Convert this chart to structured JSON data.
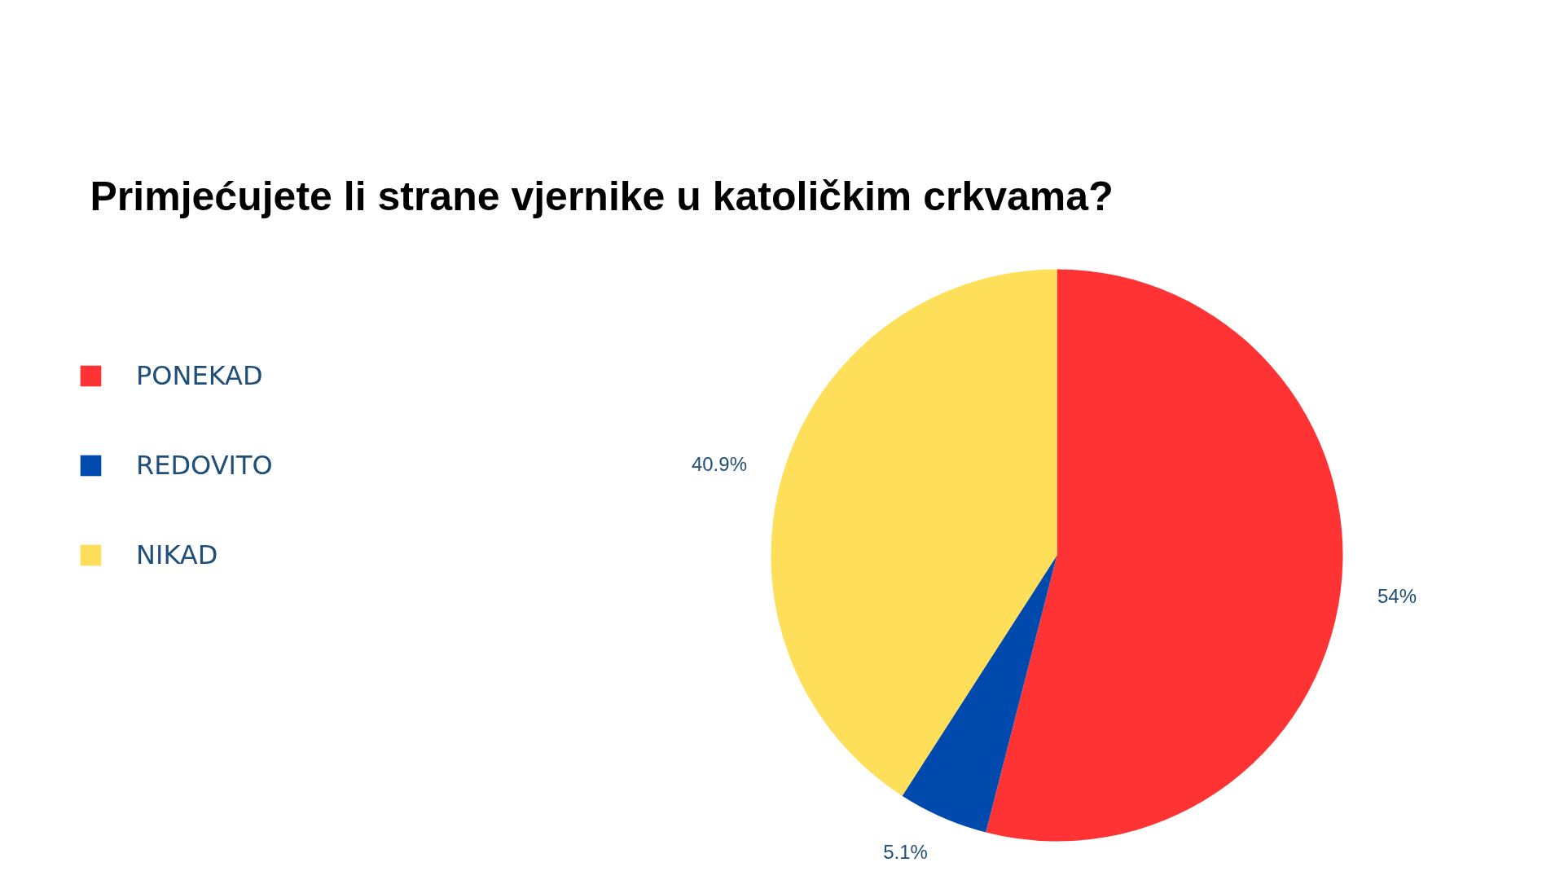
{
  "chart_data": {
    "type": "pie",
    "title": "Primjećujete li strane vjernike u katoličkim crkvama?",
    "categories": [
      "PONEKAD",
      "REDOVITO",
      "NIKAD"
    ],
    "values": [
      54,
      5.1,
      40.9
    ],
    "colors": [
      "#ff3333",
      "#004aad",
      "#ffde59"
    ],
    "value_labels": [
      "54%",
      "5.1%",
      "40.9%"
    ],
    "legend": "left"
  }
}
